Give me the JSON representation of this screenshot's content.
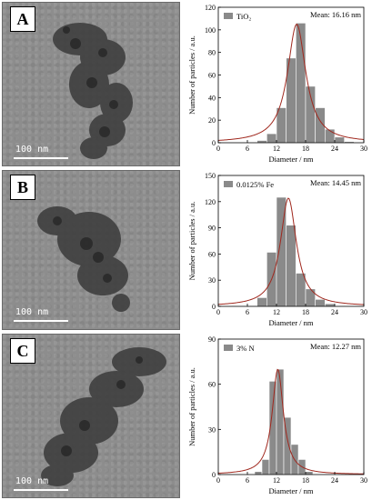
{
  "panels": [
    {
      "letter": "A",
      "scale_label": "100 nm",
      "chart": {
        "type": "bar",
        "legend": "TiO₂",
        "mean_label": "Mean: 16.16 nm",
        "ylabel": "Number of particles / a.u.",
        "xlabel": "Diameter / nm",
        "xlim": [
          0,
          30
        ],
        "ylim": [
          0,
          120
        ],
        "xticks": [
          0,
          6,
          12,
          18,
          24,
          30
        ],
        "yticks": [
          0,
          20,
          40,
          60,
          80,
          100,
          120
        ],
        "bin_width": 2,
        "bins": [
          {
            "x": 8,
            "value": 2
          },
          {
            "x": 10,
            "value": 8
          },
          {
            "x": 12,
            "value": 31
          },
          {
            "x": 14,
            "value": 75
          },
          {
            "x": 16,
            "value": 106
          },
          {
            "x": 18,
            "value": 50
          },
          {
            "x": 20,
            "value": 31
          },
          {
            "x": 22,
            "value": 12
          },
          {
            "x": 24,
            "value": 5
          },
          {
            "x": 26,
            "value": 1
          }
        ],
        "fit": {
          "center": 16.16,
          "peak": 105,
          "width": 2.3
        }
      }
    },
    {
      "letter": "B",
      "scale_label": "100 nm",
      "chart": {
        "type": "bar",
        "legend": "0.0125% Fe",
        "mean_label": "Mean: 14.45  nm",
        "ylabel": "Number of particles / a.u.",
        "xlabel": "Diameter / nm",
        "xlim": [
          0,
          30
        ],
        "ylim": [
          0,
          150
        ],
        "xticks": [
          0,
          6,
          12,
          18,
          24,
          30
        ],
        "yticks": [
          0,
          30,
          60,
          90,
          120,
          150
        ],
        "bin_width": 2,
        "bins": [
          {
            "x": 8,
            "value": 10
          },
          {
            "x": 10,
            "value": 62
          },
          {
            "x": 12,
            "value": 125
          },
          {
            "x": 14,
            "value": 93
          },
          {
            "x": 16,
            "value": 38
          },
          {
            "x": 18,
            "value": 20
          },
          {
            "x": 20,
            "value": 8
          },
          {
            "x": 22,
            "value": 3
          }
        ],
        "fit": {
          "center": 14.45,
          "peak": 124,
          "width": 2.0
        }
      }
    },
    {
      "letter": "C",
      "scale_label": "100 nm",
      "chart": {
        "type": "bar",
        "legend": "3% N",
        "mean_label": "Mean: 12.27 nm",
        "ylabel": "Number of particles / a.u.",
        "xlabel": "Diameter / nm",
        "xlim": [
          0,
          30
        ],
        "ylim": [
          0,
          90
        ],
        "xticks": [
          0,
          6,
          12,
          18,
          24,
          30
        ],
        "yticks": [
          0,
          30,
          60,
          90
        ],
        "bin_width": 1.5,
        "bins": [
          {
            "x": 7.5,
            "value": 2
          },
          {
            "x": 9,
            "value": 10
          },
          {
            "x": 10.5,
            "value": 62
          },
          {
            "x": 12,
            "value": 70
          },
          {
            "x": 13.5,
            "value": 38
          },
          {
            "x": 15,
            "value": 20
          },
          {
            "x": 16.5,
            "value": 10
          },
          {
            "x": 18,
            "value": 2
          }
        ],
        "fit": {
          "center": 12.27,
          "peak": 70,
          "width": 1.4
        }
      }
    }
  ]
}
